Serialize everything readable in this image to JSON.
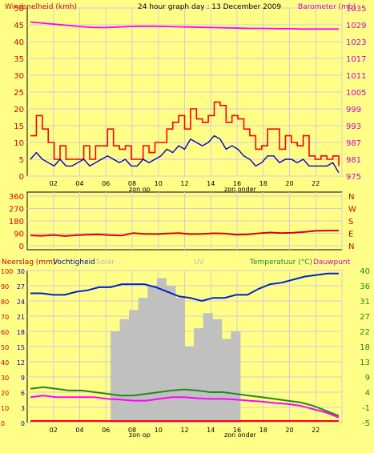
{
  "header": {
    "title": "24 hour graph day : 13 December 2009",
    "left_label": "Windsnelheid (kmh)",
    "right_label": "Barometer (mb)"
  },
  "colors": {
    "background": "#ffff88",
    "gust": "#ff0000",
    "wind": "#0000cc",
    "barometer": "#ff00ff",
    "direction": "#dd0000",
    "humidity": "#0022cc",
    "temperature": "#228822",
    "dewpoint": "#ff00ff",
    "solar": "#c0c0c0",
    "uv": "#ffff66",
    "grid": "#d8c8d8"
  },
  "x_axis": {
    "ticks": [
      "02",
      "04",
      "06",
      "08",
      "10",
      "12",
      "14",
      "16",
      "18",
      "20",
      "22",
      ""
    ],
    "annotations": [
      "zon op",
      "zon onder"
    ]
  },
  "chart_data": [
    {
      "type": "line",
      "title": "24 hour graph day : 13 December 2009",
      "ylabel_left": "Windsnelheid (kmh)",
      "ylabel_right": "Barometer (mb)",
      "yticks_left": [
        "50",
        "45",
        "40",
        "35",
        "30",
        "25",
        "20",
        "15",
        "10",
        "5",
        "0"
      ],
      "yticks_right": [
        "1035",
        "1029",
        "1023",
        "1017",
        "1011",
        "1005",
        "999",
        "993",
        "987",
        "981",
        "975"
      ],
      "ylim_left": [
        0,
        50
      ],
      "ylim_right": [
        975,
        1035
      ],
      "series": [
        {
          "name": "Windstoten",
          "axis": "left",
          "values": [
            12,
            18,
            14,
            10,
            5,
            9,
            5,
            5,
            5,
            9,
            5,
            9,
            9,
            14,
            9,
            8,
            9,
            5,
            5,
            9,
            7,
            10,
            10,
            14,
            16,
            18,
            14,
            20,
            17,
            16,
            18,
            22,
            21,
            16,
            18,
            17,
            14,
            12,
            8,
            9,
            14,
            14,
            8,
            12,
            10,
            9,
            12,
            6,
            5,
            6,
            5,
            6,
            3
          ]
        },
        {
          "name": "Windsnelheid",
          "axis": "left",
          "values": [
            5,
            7,
            5,
            4,
            3,
            5,
            3,
            3,
            4,
            5,
            3,
            4,
            5,
            6,
            5,
            4,
            5,
            3,
            3,
            5,
            4,
            5,
            6,
            8,
            7,
            9,
            8,
            11,
            10,
            9,
            10,
            12,
            11,
            8,
            9,
            8,
            6,
            5,
            3,
            4,
            6,
            6,
            4,
            5,
            5,
            4,
            5,
            3,
            3,
            3,
            3,
            4,
            1
          ]
        },
        {
          "name": "Barometer",
          "axis": "right",
          "values": [
            1030,
            1029.6,
            1029.2,
            1028.8,
            1028.4,
            1028.1,
            1028,
            1028.2,
            1028.4,
            1028.5,
            1028.5,
            1028.4,
            1028.3,
            1028.2,
            1028.1,
            1028,
            1027.9,
            1027.8,
            1027.7,
            1027.7,
            1027.6,
            1027.6,
            1027.5,
            1027.5,
            1027.5,
            1027.5
          ]
        }
      ]
    },
    {
      "type": "line",
      "yticks_left": [
        "360",
        "270",
        "180",
        "90",
        "0"
      ],
      "yticks_right": [
        "N",
        "W",
        "S",
        "E",
        "N"
      ],
      "ylim": [
        0,
        360
      ],
      "series": [
        {
          "name": "Windrichting",
          "values": [
            75,
            72,
            78,
            70,
            76,
            80,
            82,
            76,
            74,
            92,
            86,
            84,
            88,
            92,
            84,
            86,
            90,
            88,
            80,
            82,
            90,
            96,
            92,
            94,
            100,
            108,
            110,
            110
          ]
        }
      ]
    },
    {
      "type": "line",
      "ylabel_left": "Neerslag (mm)",
      "ylabel_left2": "Vochtigheid",
      "label_solar": "Solar",
      "label_uv": "UV",
      "ylabel_right": "Temperatuur (°C)",
      "ylabel_right2": "Dauwpunt",
      "yticks_left": [
        "100",
        "90",
        "80",
        "70",
        "60",
        "50",
        "40",
        "30",
        "20",
        "10",
        "0"
      ],
      "yticks_left2": [
        "30",
        "27",
        "24",
        "21",
        "18",
        "15",
        "12",
        "9",
        "6",
        "3",
        "0"
      ],
      "yticks_right": [
        "40",
        "36",
        "31",
        "27",
        "22",
        "18",
        "13",
        "9",
        "4",
        "-1",
        "-5"
      ],
      "ylim_left": [
        0,
        100
      ],
      "ylim_right": [
        -5,
        40
      ],
      "series": [
        {
          "name": "Vochtigheid",
          "values": [
            85,
            85,
            84,
            84,
            86,
            87,
            89,
            89,
            91,
            91,
            91,
            89,
            86,
            83,
            82,
            80,
            82,
            82,
            84,
            84,
            88,
            91,
            92,
            94,
            96,
            97,
            98,
            98
          ]
        },
        {
          "name": "Temperatuur",
          "values": [
            5,
            5.5,
            5,
            4.5,
            4.5,
            4,
            3.5,
            3,
            3,
            3.5,
            4,
            4.5,
            4.8,
            4.5,
            4,
            4,
            3.5,
            3,
            2.5,
            2,
            1.5,
            1,
            0,
            -1.5,
            -3
          ]
        },
        {
          "name": "Dauwpunt",
          "values": [
            2.5,
            3,
            2.5,
            2.5,
            2.5,
            2.5,
            2,
            1.8,
            1.5,
            1.5,
            2,
            2.5,
            2.5,
            2.2,
            2,
            2,
            1.8,
            1.5,
            1.2,
            0.8,
            0.5,
            0,
            -1,
            -2,
            -3.5
          ]
        },
        {
          "name": "Neerslag",
          "values": [
            0,
            0,
            0,
            0,
            0,
            0,
            0,
            0,
            0,
            0,
            0,
            0,
            0,
            0,
            0,
            0,
            0,
            0,
            0,
            0,
            0,
            0,
            0,
            0
          ]
        },
        {
          "name": "Solar",
          "values": [
            0,
            0,
            0,
            0,
            0,
            0,
            0,
            0,
            0,
            0.6,
            0.68,
            0.74,
            0.82,
            0.9,
            0.95,
            0.9,
            0.82,
            0.5,
            0.62,
            0.72,
            0.68,
            0.55,
            0.6,
            0,
            0,
            0,
            0,
            0,
            0,
            0,
            0,
            0,
            0,
            0
          ]
        }
      ]
    }
  ]
}
